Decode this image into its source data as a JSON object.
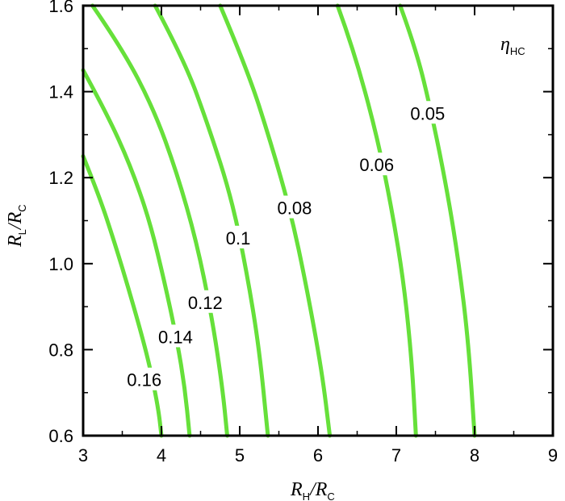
{
  "chart_data": {
    "type": "contour",
    "xlim": [
      3,
      9
    ],
    "ylim": [
      0.6,
      1.6
    ],
    "xticks": [
      "3",
      "4",
      "5",
      "6",
      "7",
      "8",
      "9"
    ],
    "yticks": [
      "0.6",
      "0.8",
      "1.0",
      "1.2",
      "1.4",
      "1.6"
    ],
    "xlabel": {
      "main": "R",
      "sub": "H",
      "sep": "/",
      "den": "R",
      "den_sub": "C"
    },
    "ylabel": {
      "main": "R",
      "sub": "L",
      "sep": "/",
      "den": "R",
      "den_sub": "C"
    },
    "annotation": {
      "symbol": "η",
      "sub": "HC"
    },
    "grid": false,
    "line_color": "#66e03a",
    "series": [
      {
        "level": "0.16",
        "points": [
          [
            3.0,
            1.25
          ],
          [
            3.2,
            1.16
          ],
          [
            3.4,
            1.05
          ],
          [
            3.6,
            0.93
          ],
          [
            3.8,
            0.8
          ],
          [
            3.9,
            0.72
          ],
          [
            3.97,
            0.65
          ],
          [
            4.0,
            0.6
          ]
        ],
        "label_at": [
          3.78,
          0.73
        ]
      },
      {
        "level": "0.14",
        "points": [
          [
            3.0,
            1.45
          ],
          [
            3.3,
            1.35
          ],
          [
            3.6,
            1.23
          ],
          [
            3.85,
            1.1
          ],
          [
            4.05,
            0.95
          ],
          [
            4.2,
            0.82
          ],
          [
            4.3,
            0.71
          ],
          [
            4.36,
            0.6
          ]
        ],
        "label_at": [
          4.18,
          0.83
        ]
      },
      {
        "level": "0.12",
        "points": [
          [
            3.12,
            1.6
          ],
          [
            3.5,
            1.5
          ],
          [
            3.9,
            1.36
          ],
          [
            4.2,
            1.21
          ],
          [
            4.45,
            1.05
          ],
          [
            4.65,
            0.87
          ],
          [
            4.78,
            0.71
          ],
          [
            4.84,
            0.6
          ]
        ],
        "label_at": [
          4.56,
          0.91
        ]
      },
      {
        "level": "0.1",
        "points": [
          [
            3.92,
            1.6
          ],
          [
            4.3,
            1.47
          ],
          [
            4.6,
            1.32
          ],
          [
            4.9,
            1.15
          ],
          [
            5.1,
            0.97
          ],
          [
            5.25,
            0.8
          ],
          [
            5.36,
            0.6
          ]
        ],
        "label_at": [
          4.98,
          1.06
        ]
      },
      {
        "level": "0.08",
        "points": [
          [
            4.75,
            1.6
          ],
          [
            5.1,
            1.45
          ],
          [
            5.4,
            1.28
          ],
          [
            5.65,
            1.12
          ],
          [
            5.85,
            0.95
          ],
          [
            6.05,
            0.75
          ],
          [
            6.15,
            0.6
          ]
        ],
        "label_at": [
          5.7,
          1.13
        ]
      },
      {
        "level": "0.06",
        "points": [
          [
            6.25,
            1.6
          ],
          [
            6.45,
            1.5
          ],
          [
            6.75,
            1.3
          ],
          [
            6.95,
            1.12
          ],
          [
            7.1,
            0.95
          ],
          [
            7.2,
            0.77
          ],
          [
            7.25,
            0.6
          ]
        ],
        "label_at": [
          6.75,
          1.23
        ]
      },
      {
        "level": "0.05",
        "points": [
          [
            7.05,
            1.6
          ],
          [
            7.25,
            1.5
          ],
          [
            7.45,
            1.35
          ],
          [
            7.65,
            1.17
          ],
          [
            7.8,
            1.0
          ],
          [
            7.92,
            0.82
          ],
          [
            8.0,
            0.6
          ]
        ],
        "label_at": [
          7.4,
          1.35
        ]
      }
    ]
  }
}
